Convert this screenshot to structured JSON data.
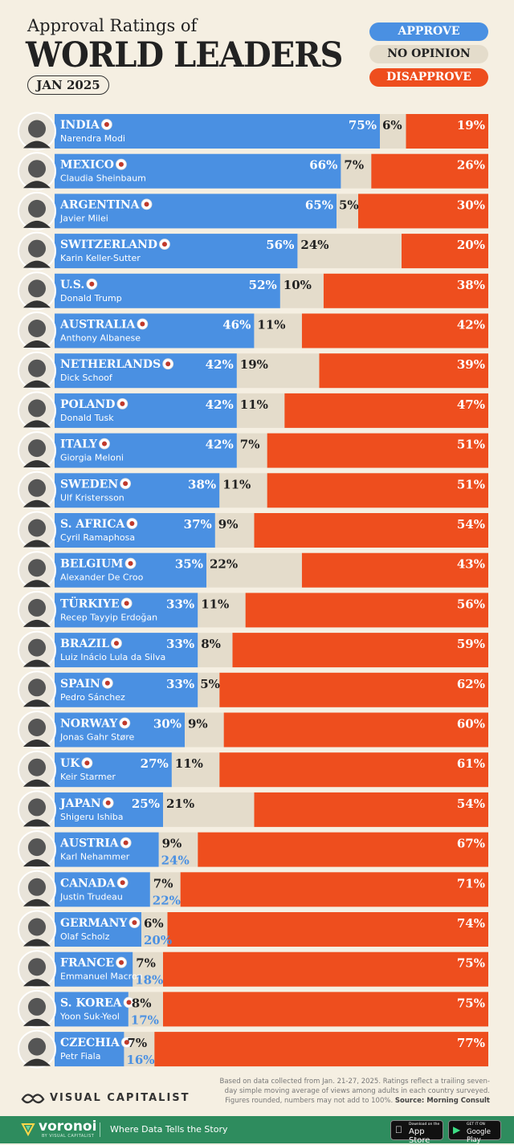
{
  "header": {
    "title_line1": "Approval Ratings of",
    "title_line2": "WORLD LEADERS",
    "subtitle": "JAN 2025"
  },
  "legend": {
    "approve": "APPROVE",
    "no_opinion": "NO OPINION",
    "disapprove": "DISAPPROVE"
  },
  "colors": {
    "approve": "#4a90e2",
    "no_opinion": "#e4dccb",
    "disapprove": "#ee4e1e",
    "background": "#f5efe2"
  },
  "chart_data": {
    "type": "bar",
    "stacked": true,
    "orientation": "horizontal",
    "categories": [
      {
        "country": "INDIA",
        "leader": "Narendra Modi",
        "flag": "india-flag-icon"
      },
      {
        "country": "MEXICO",
        "leader": "Claudia Sheinbaum",
        "flag": "mexico-flag-icon"
      },
      {
        "country": "ARGENTINA",
        "leader": "Javier Milei",
        "flag": "argentina-flag-icon"
      },
      {
        "country": "SWITZERLAND",
        "leader": "Karin Keller-Sutter",
        "flag": "switzerland-flag-icon"
      },
      {
        "country": "U.S.",
        "leader": "Donald Trump",
        "flag": "us-flag-icon"
      },
      {
        "country": "AUSTRALIA",
        "leader": "Anthony Albanese",
        "flag": "australia-flag-icon"
      },
      {
        "country": "NETHERLANDS",
        "leader": "Dick Schoof",
        "flag": "netherlands-flag-icon"
      },
      {
        "country": "POLAND",
        "leader": "Donald Tusk",
        "flag": "poland-flag-icon"
      },
      {
        "country": "ITALY",
        "leader": "Giorgia Meloni",
        "flag": "italy-flag-icon"
      },
      {
        "country": "SWEDEN",
        "leader": "Ulf Kristersson",
        "flag": "sweden-flag-icon"
      },
      {
        "country": "S. AFRICA",
        "leader": "Cyril Ramaphosa",
        "flag": "south-africa-flag-icon"
      },
      {
        "country": "BELGIUM",
        "leader": "Alexander De Croo",
        "flag": "belgium-flag-icon"
      },
      {
        "country": "TÜRKIYE",
        "leader": "Recep Tayyip Erdoğan",
        "flag": "turkiye-flag-icon"
      },
      {
        "country": "BRAZIL",
        "leader": "Luiz Inácio Lula da Silva",
        "flag": "brazil-flag-icon"
      },
      {
        "country": "SPAIN",
        "leader": "Pedro Sánchez",
        "flag": "spain-flag-icon"
      },
      {
        "country": "NORWAY",
        "leader": "Jonas Gahr Støre",
        "flag": "norway-flag-icon"
      },
      {
        "country": "UK",
        "leader": "Keir Starmer",
        "flag": "uk-flag-icon"
      },
      {
        "country": "JAPAN",
        "leader": "Shigeru Ishiba",
        "flag": "japan-flag-icon"
      },
      {
        "country": "AUSTRIA",
        "leader": "Karl Nehammer",
        "flag": "austria-flag-icon"
      },
      {
        "country": "CANADA",
        "leader": "Justin Trudeau",
        "flag": "canada-flag-icon"
      },
      {
        "country": "GERMANY",
        "leader": "Olaf Scholz",
        "flag": "germany-flag-icon"
      },
      {
        "country": "FRANCE",
        "leader": "Emmanuel Macron",
        "flag": "france-flag-icon"
      },
      {
        "country": "S. KOREA",
        "leader": "Yoon Suk-Yeol",
        "flag": "south-korea-flag-icon"
      },
      {
        "country": "CZECHIA",
        "leader": "Petr Fiala",
        "flag": "czechia-flag-icon"
      }
    ],
    "series": [
      {
        "name": "APPROVE",
        "values": [
          75,
          66,
          65,
          56,
          52,
          46,
          42,
          42,
          42,
          38,
          37,
          35,
          33,
          33,
          33,
          30,
          27,
          25,
          24,
          22,
          20,
          18,
          17,
          16
        ]
      },
      {
        "name": "NO OPINION",
        "values": [
          6,
          7,
          5,
          24,
          10,
          11,
          19,
          11,
          7,
          11,
          9,
          22,
          11,
          8,
          5,
          9,
          11,
          21,
          9,
          7,
          6,
          7,
          8,
          7
        ]
      },
      {
        "name": "DISAPPROVE",
        "values": [
          19,
          26,
          30,
          20,
          38,
          42,
          39,
          47,
          51,
          51,
          54,
          43,
          56,
          59,
          62,
          60,
          61,
          54,
          67,
          71,
          74,
          75,
          75,
          77
        ]
      }
    ],
    "xlim": [
      0,
      100
    ]
  },
  "footnote": {
    "text": "Based on data collected from Jan. 21-27, 2025. Ratings reflect a trailing seven-day simple moving average of views among adults in each country surveyed. Figures rounded, numbers may not add to 100%.",
    "source": "Source: Morning Consult"
  },
  "brand": {
    "name": "VISUAL CAPITALIST",
    "logo_icon": "visual-capitalist-logo-icon"
  },
  "footer": {
    "logo": "voronoi",
    "logo_sub": "BY VISUAL CAPITALIST",
    "tagline": "Where Data Tells the Story",
    "app_store_small": "Download on the",
    "app_store": "App Store",
    "google_play_small": "GET IT ON",
    "google_play": "Google Play"
  }
}
